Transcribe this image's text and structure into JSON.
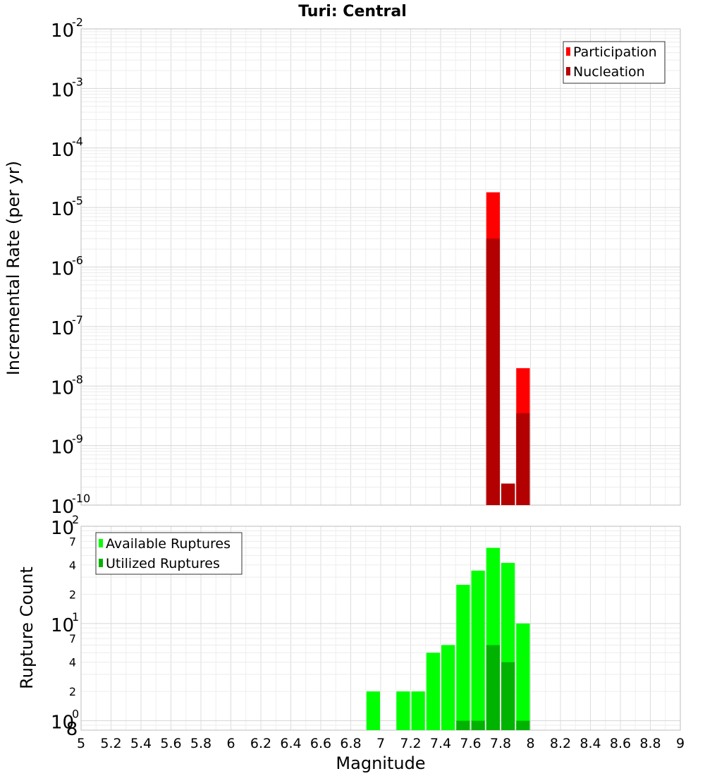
{
  "colors": {
    "participation": "#ff0000",
    "nucleation": "#b30000",
    "available": "#00ff00",
    "utilized": "#00b300",
    "grid": "#e3e3e3",
    "frame": "#bdbdbd"
  },
  "chart_data": [
    {
      "type": "bar",
      "title": "Turi: Central",
      "xlabel": "",
      "ylabel": "Incremental Rate (per yr)",
      "xlim": [
        5,
        9
      ],
      "ylim": [
        1e-10,
        0.01
      ],
      "yscale": "log",
      "grid": true,
      "legend_position": "top-right",
      "y_ticks": [
        {
          "base": "10",
          "exp": "-10"
        },
        {
          "base": "10",
          "exp": "-9"
        },
        {
          "base": "10",
          "exp": "-8"
        },
        {
          "base": "10",
          "exp": "-7"
        },
        {
          "base": "10",
          "exp": "-6"
        },
        {
          "base": "10",
          "exp": "-5"
        },
        {
          "base": "10",
          "exp": "-4"
        },
        {
          "base": "10",
          "exp": "-3"
        },
        {
          "base": "10",
          "exp": "-2"
        }
      ],
      "bin_width": 0.1,
      "series": [
        {
          "name": "Participation",
          "color": "#ff0000",
          "x": [
            7.75,
            7.85,
            7.95
          ],
          "values": [
            1.8e-05,
            2.3e-10,
            2e-08
          ]
        },
        {
          "name": "Nucleation",
          "color": "#b30000",
          "x": [
            7.75,
            7.85,
            7.95
          ],
          "values": [
            3e-06,
            2.3e-10,
            3.5e-09
          ]
        }
      ]
    },
    {
      "type": "bar",
      "title": "",
      "xlabel": "Magnitude",
      "ylabel": "Rupture Count",
      "xlim": [
        5,
        9
      ],
      "ylim": [
        0.8,
        100
      ],
      "yscale": "log",
      "grid": true,
      "legend_position": "top-left",
      "x_ticks": [
        "5",
        "5.2",
        "5.4",
        "5.6",
        "5.8",
        "6",
        "6.2",
        "6.4",
        "6.6",
        "6.8",
        "7",
        "7.2",
        "7.4",
        "7.6",
        "7.8",
        "8",
        "8.2",
        "8.4",
        "8.6",
        "8.8",
        "9"
      ],
      "y_major_ticks": [
        {
          "value": 1,
          "base": "10",
          "exp": "0"
        },
        {
          "value": 10,
          "base": "10",
          "exp": "1"
        },
        {
          "value": 100,
          "base": "10",
          "exp": "2"
        }
      ],
      "y_minor_ticks": [
        {
          "value": 0.8,
          "label": "8"
        },
        {
          "value": 2,
          "label": "2"
        },
        {
          "value": 4,
          "label": "4"
        },
        {
          "value": 7,
          "label": "7"
        },
        {
          "value": 20,
          "label": "2"
        },
        {
          "value": 40,
          "label": "4"
        },
        {
          "value": 70,
          "label": "7"
        }
      ],
      "bin_width": 0.1,
      "series": [
        {
          "name": "Available Ruptures",
          "color": "#00ff00",
          "x": [
            6.95,
            7.15,
            7.25,
            7.35,
            7.45,
            7.55,
            7.65,
            7.75,
            7.85,
            7.95
          ],
          "values": [
            2,
            2,
            2,
            5,
            6,
            25,
            35,
            60,
            42,
            10
          ]
        },
        {
          "name": "Utilized Ruptures",
          "color": "#00b300",
          "x": [
            7.55,
            7.65,
            7.75,
            7.85,
            7.95
          ],
          "values": [
            1,
            1,
            6,
            4,
            1
          ]
        }
      ]
    }
  ]
}
